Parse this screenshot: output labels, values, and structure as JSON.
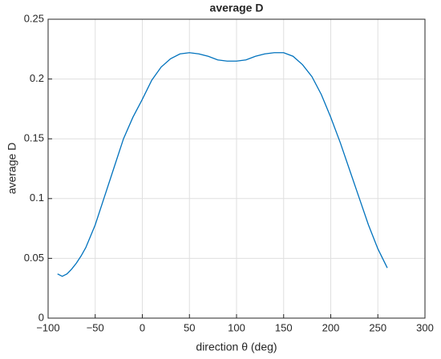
{
  "chart_data": {
    "type": "line",
    "title": "average D",
    "xlabel": "direction θ (deg)",
    "ylabel": "average D",
    "x": [
      -90,
      -85,
      -80,
      -75,
      -70,
      -65,
      -60,
      -50,
      -40,
      -30,
      -20,
      -10,
      0,
      10,
      20,
      30,
      40,
      50,
      60,
      70,
      80,
      90,
      100,
      110,
      120,
      130,
      140,
      150,
      160,
      170,
      180,
      190,
      200,
      210,
      220,
      230,
      240,
      250,
      260
    ],
    "series": [
      {
        "name": "average D",
        "color": "#0072bd",
        "values": [
          0.037,
          0.035,
          0.037,
          0.041,
          0.046,
          0.052,
          0.059,
          0.078,
          0.102,
          0.126,
          0.15,
          0.168,
          0.183,
          0.199,
          0.21,
          0.217,
          0.221,
          0.222,
          0.221,
          0.219,
          0.216,
          0.215,
          0.215,
          0.216,
          0.219,
          0.221,
          0.222,
          0.222,
          0.219,
          0.212,
          0.202,
          0.187,
          0.168,
          0.147,
          0.124,
          0.101,
          0.078,
          0.058,
          0.042
        ]
      }
    ],
    "xlim": [
      -100,
      300
    ],
    "xticks": [
      {
        "value": -100,
        "label": "−100"
      },
      {
        "value": -50,
        "label": "−50"
      },
      0,
      50,
      100,
      150,
      200,
      250,
      300
    ],
    "ylim": [
      0,
      0.25
    ],
    "yticks": [
      0,
      0.05,
      0.1,
      0.15,
      0.2,
      0.25
    ],
    "grid": true
  }
}
